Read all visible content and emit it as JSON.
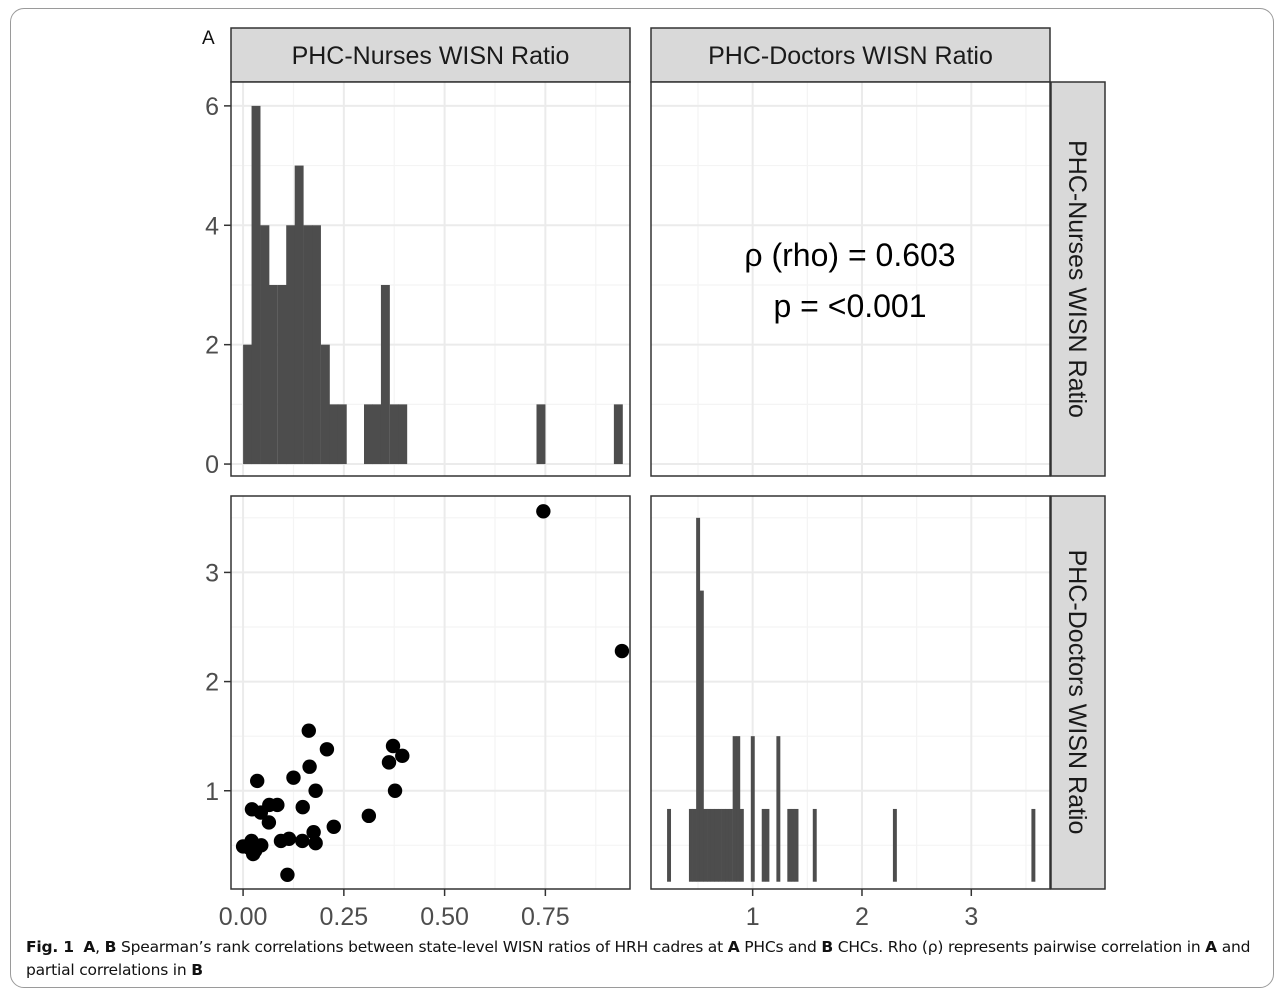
{
  "panel_label": "A",
  "strips": {
    "col1": "PHC-Nurses WISN Ratio",
    "col2": "PHC-Doctors WISN Ratio",
    "row1": "PHC-Nurses WISN Ratio",
    "row2": "PHC-Doctors WISN Ratio"
  },
  "correlation": {
    "rho_label": "ρ (rho) =  0.603",
    "p_label": "p =  <0.001"
  },
  "caption": {
    "fig_label": "Fig. 1",
    "ref_a1": "A",
    "sep1": ", ",
    "ref_b1": "B",
    "text1": " Spearman’s rank correlations between state-level WISN ratios of HRH cadres at ",
    "ref_a2": "A",
    "text2": " PHCs and ",
    "ref_b2": "B",
    "text3": " CHCs. Rho (ρ) represents pairwise correlation in ",
    "ref_a3": "A",
    "text4": " and partial correlations in ",
    "ref_b3": "B"
  },
  "colors": {
    "bar_fill": "#4d4d4d",
    "point_fill": "#000000",
    "strip_fill": "#d9d9d9",
    "grid_major": "#ebebeb",
    "grid_minor": "#f4f4f4",
    "panel_border": "#333333"
  },
  "chart_data": [
    {
      "type": "bar",
      "panel": "top-left histogram (PHC-Nurses WISN Ratio)",
      "bin_width": 0.0214,
      "bin_starts": [
        0.0,
        0.021,
        0.043,
        0.064,
        0.086,
        0.107,
        0.128,
        0.15,
        0.171,
        0.193,
        0.214,
        0.235,
        0.3,
        0.321,
        0.342,
        0.364,
        0.385,
        0.728,
        0.92
      ],
      "counts": [
        2,
        6,
        4,
        3,
        3,
        4,
        5,
        4,
        4,
        2,
        1,
        1,
        1,
        1,
        3,
        1,
        1,
        1,
        1
      ],
      "xlim": [
        -0.03,
        0.96
      ],
      "ylim": [
        -0.2,
        6.4
      ],
      "yticks": [
        0,
        2,
        4,
        6
      ],
      "xticks": [
        0.0,
        0.25,
        0.5,
        0.75
      ],
      "xtick_labels": [
        "0.00",
        "0.25",
        "0.50",
        "0.75"
      ]
    },
    {
      "type": "text",
      "panel": "top-right correlation",
      "lines": [
        "ρ (rho) =  0.603",
        "p =  <0.001"
      ]
    },
    {
      "type": "scatter",
      "panel": "bottom-left (x: PHC-Nurses WISN Ratio, y: PHC-Doctors WISN Ratio)",
      "points": [
        [
          0.745,
          3.56
        ],
        [
          0.94,
          2.28
        ],
        [
          0.163,
          1.55
        ],
        [
          0.372,
          1.41
        ],
        [
          0.395,
          1.32
        ],
        [
          0.208,
          1.38
        ],
        [
          0.362,
          1.26
        ],
        [
          0.165,
          1.22
        ],
        [
          0.125,
          1.12
        ],
        [
          0.035,
          1.09
        ],
        [
          0.18,
          1.0
        ],
        [
          0.377,
          1.0
        ],
        [
          0.065,
          0.87
        ],
        [
          0.085,
          0.87
        ],
        [
          0.148,
          0.85
        ],
        [
          0.022,
          0.83
        ],
        [
          0.044,
          0.8
        ],
        [
          0.312,
          0.77
        ],
        [
          0.064,
          0.71
        ],
        [
          0.225,
          0.67
        ],
        [
          0.175,
          0.62
        ],
        [
          0.114,
          0.56
        ],
        [
          0.094,
          0.54
        ],
        [
          0.147,
          0.54
        ],
        [
          0.021,
          0.54
        ],
        [
          0.18,
          0.52
        ],
        [
          0.045,
          0.5
        ],
        [
          0.0,
          0.49
        ],
        [
          0.014,
          0.48
        ],
        [
          0.03,
          0.45
        ],
        [
          0.025,
          0.42
        ],
        [
          0.11,
          0.23
        ]
      ],
      "xlim": [
        -0.03,
        0.96
      ],
      "ylim": [
        0.1,
        3.7
      ],
      "xticks": [
        0.0,
        0.25,
        0.5,
        0.75
      ],
      "xtick_labels": [
        "0.00",
        "0.25",
        "0.50",
        "0.75"
      ],
      "yticks": [
        1,
        2,
        3
      ]
    },
    {
      "type": "bar",
      "panel": "bottom-right histogram (PHC-Doctors WISN Ratio)",
      "bin_width": 0.0333,
      "bin_starts": [
        0.217,
        0.417,
        0.45,
        0.483,
        0.517,
        0.55,
        0.583,
        0.617,
        0.65,
        0.683,
        0.717,
        0.75,
        0.783,
        0.817,
        0.85,
        0.883,
        0.983,
        1.083,
        1.117,
        1.217,
        1.317,
        1.35,
        1.383,
        1.55,
        2.283,
        3.55
      ],
      "counts": [
        1,
        1,
        1,
        5,
        4,
        1,
        1,
        1,
        1,
        1,
        1,
        1,
        1,
        2,
        2,
        1,
        2,
        1,
        1,
        2,
        1,
        1,
        1,
        1,
        1,
        1
      ],
      "xlim": [
        0.07,
        3.72
      ],
      "ylim": [
        -0.1,
        5.3
      ],
      "xticks": [
        1,
        2,
        3
      ],
      "xtick_labels": [
        "1",
        "2",
        "3"
      ]
    }
  ]
}
